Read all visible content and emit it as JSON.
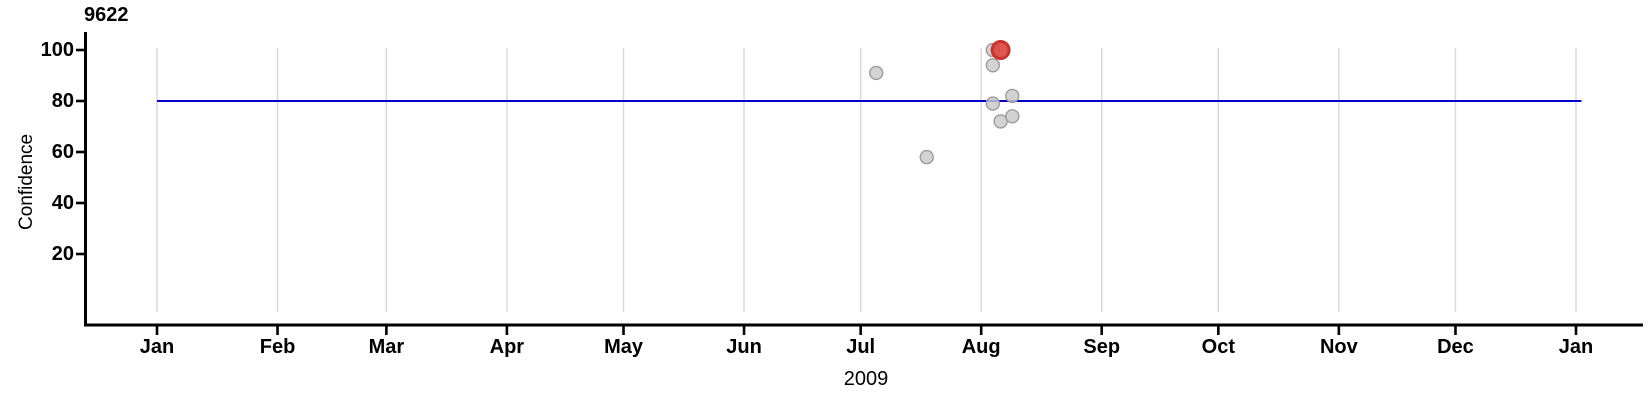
{
  "chart_data": {
    "type": "scatter",
    "title": "9622",
    "ylabel": "Confidence",
    "xlabel": "2009",
    "x_axis": {
      "start": "2009-01-01",
      "end": "2010-01-01",
      "tick_labels": [
        "Jan",
        "Feb",
        "Mar",
        "Apr",
        "May",
        "Jun",
        "Jul",
        "Aug",
        "Sep",
        "Oct",
        "Nov",
        "Dec",
        "Jan"
      ]
    },
    "y_axis": {
      "ticks": [
        20,
        40,
        60,
        80,
        100
      ],
      "range_shown": [
        0,
        107
      ]
    },
    "grid": true,
    "legend": "none",
    "reference_line": {
      "value": 80
    },
    "points": [
      {
        "date": "2009-07-05",
        "confidence": 91,
        "highlighted": false
      },
      {
        "date": "2009-07-18",
        "confidence": 58,
        "highlighted": false
      },
      {
        "date": "2009-08-04",
        "confidence": 100,
        "highlighted": false
      },
      {
        "date": "2009-08-04",
        "confidence": 94,
        "highlighted": false
      },
      {
        "date": "2009-08-04",
        "confidence": 79,
        "highlighted": false
      },
      {
        "date": "2009-08-06",
        "confidence": 100,
        "highlighted": true
      },
      {
        "date": "2009-08-06",
        "confidence": 72,
        "highlighted": false
      },
      {
        "date": "2009-08-09",
        "confidence": 82,
        "highlighted": false
      },
      {
        "date": "2009-08-09",
        "confidence": 74,
        "highlighted": false
      }
    ],
    "colors": {
      "point_fill": "#c9c9c9",
      "point_stroke": "#9c9c9c",
      "highlight_fill": "#dc4842",
      "highlight_stroke": "#c7342e",
      "grid_color": "#d7d7d7",
      "axis_color": "#000000",
      "reference_color": "#0000cc"
    }
  }
}
